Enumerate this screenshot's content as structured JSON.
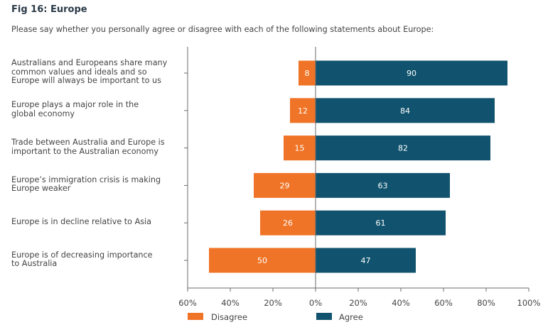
{
  "header": {
    "title": "Fig 16: Europe",
    "subtitle": "Please say whether you personally agree or disagree with each of the following statements about Europe:"
  },
  "chart_data": {
    "type": "bar",
    "orientation": "horizontal-diverging",
    "title": "Fig 16: Europe",
    "categories": [
      "Australians and Europeans share many common values and ideals and so Europe will always be important to us",
      "Europe plays a major role in the global economy",
      "Trade between Australia and Europe is important to the Australian economy",
      "Europe’s immigration crisis is making Europe weaker",
      "Europe is in decline relative to Asia",
      "Europe is of decreasing importance to Australia"
    ],
    "category_lines": [
      [
        "Australians and Europeans share many",
        "common values and ideals and so",
        "Europe will always be important to us"
      ],
      [
        "Europe plays a major role in the",
        "global economy"
      ],
      [
        "Trade between Australia and Europe is",
        "important to the Australian economy"
      ],
      [
        "Europe’s immigration crisis is making",
        "Europe weaker"
      ],
      [
        "Europe is in decline relative to Asia"
      ],
      [
        "Europe is of decreasing importance",
        "to Australia"
      ]
    ],
    "series": [
      {
        "name": "Disagree",
        "color": "#f07427",
        "values": [
          8,
          12,
          15,
          29,
          26,
          50
        ]
      },
      {
        "name": "Agree",
        "color": "#11536e",
        "values": [
          90,
          84,
          82,
          63,
          61,
          47
        ]
      }
    ],
    "xlim": [
      -60,
      100
    ],
    "xticks": [
      -60,
      -40,
      -20,
      0,
      20,
      40,
      60,
      80,
      100
    ],
    "xtick_labels": [
      "60%",
      "40%",
      "20%",
      "0%",
      "20%",
      "40%",
      "60%",
      "80%",
      "100%"
    ],
    "legend": {
      "placement": "bottom",
      "entries": [
        "Disagree",
        "Agree"
      ]
    },
    "grid": false
  }
}
